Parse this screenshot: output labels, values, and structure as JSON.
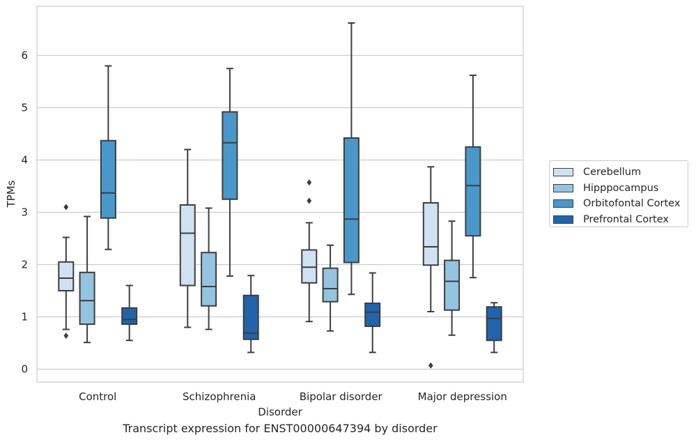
{
  "chart_data": {
    "type": "box",
    "title": "",
    "caption": "Transcript expression for ENST00000647394 by disorder",
    "xlabel": "Disorder",
    "ylabel": "TPMs",
    "ylim": [
      -0.25,
      7.15
    ],
    "yticks": [
      0,
      1,
      2,
      3,
      4,
      5,
      6
    ],
    "grid": "horizontal",
    "legend_position": "right",
    "categories": [
      "Control",
      "Schizophrenia",
      "Bipolar disorder",
      "Major depression"
    ],
    "series": [
      {
        "name": "Cerebellum",
        "color": "#d0e1f2",
        "boxes": [
          {
            "whislo": 0.76,
            "q1": 1.5,
            "med": 1.74,
            "q3": 2.05,
            "whishi": 2.52,
            "fliers": [
              3.1,
              0.64
            ]
          },
          {
            "whislo": 0.8,
            "q1": 1.6,
            "med": 2.6,
            "q3": 3.14,
            "whishi": 4.2,
            "fliers": []
          },
          {
            "whislo": 0.91,
            "q1": 1.65,
            "med": 1.95,
            "q3": 2.28,
            "whishi": 2.8,
            "fliers": [
              3.57,
              3.22
            ]
          },
          {
            "whislo": 1.1,
            "q1": 1.99,
            "med": 2.34,
            "q3": 3.18,
            "whishi": 3.87,
            "fliers": [
              0.07
            ]
          }
        ]
      },
      {
        "name": "Hipppocampus",
        "color": "#94c4df",
        "boxes": [
          {
            "whislo": 0.51,
            "q1": 0.86,
            "med": 1.31,
            "q3": 1.85,
            "whishi": 2.92,
            "fliers": []
          },
          {
            "whislo": 0.76,
            "q1": 1.21,
            "med": 1.58,
            "q3": 2.23,
            "whishi": 3.08,
            "fliers": []
          },
          {
            "whislo": 0.73,
            "q1": 1.29,
            "med": 1.54,
            "q3": 1.93,
            "whishi": 2.37,
            "fliers": []
          },
          {
            "whislo": 0.65,
            "q1": 1.13,
            "med": 1.68,
            "q3": 2.08,
            "whishi": 2.83,
            "fliers": []
          }
        ]
      },
      {
        "name": "Orbitofontal Cortex",
        "color": "#4a98c9",
        "boxes": [
          {
            "whislo": 2.29,
            "q1": 2.89,
            "med": 3.37,
            "q3": 4.37,
            "whishi": 5.8,
            "fliers": []
          },
          {
            "whislo": 1.78,
            "q1": 3.25,
            "med": 4.33,
            "q3": 4.92,
            "whishi": 5.75,
            "fliers": []
          },
          {
            "whislo": 1.43,
            "q1": 2.04,
            "med": 2.87,
            "q3": 4.42,
            "whishi": 6.62,
            "fliers": []
          },
          {
            "whislo": 1.75,
            "q1": 2.55,
            "med": 3.51,
            "q3": 4.25,
            "whishi": 5.62,
            "fliers": []
          }
        ]
      },
      {
        "name": "Prefrontal Cortex",
        "color": "#2164ab",
        "boxes": [
          {
            "whislo": 0.55,
            "q1": 0.86,
            "med": 0.95,
            "q3": 1.17,
            "whishi": 1.6,
            "fliers": []
          },
          {
            "whislo": 0.32,
            "q1": 0.57,
            "med": 0.69,
            "q3": 1.41,
            "whishi": 1.79,
            "fliers": []
          },
          {
            "whislo": 0.32,
            "q1": 0.82,
            "med": 1.09,
            "q3": 1.26,
            "whishi": 1.84,
            "fliers": []
          },
          {
            "whislo": 0.32,
            "q1": 0.55,
            "med": 0.97,
            "q3": 1.19,
            "whishi": 1.27,
            "fliers": []
          }
        ]
      }
    ]
  }
}
